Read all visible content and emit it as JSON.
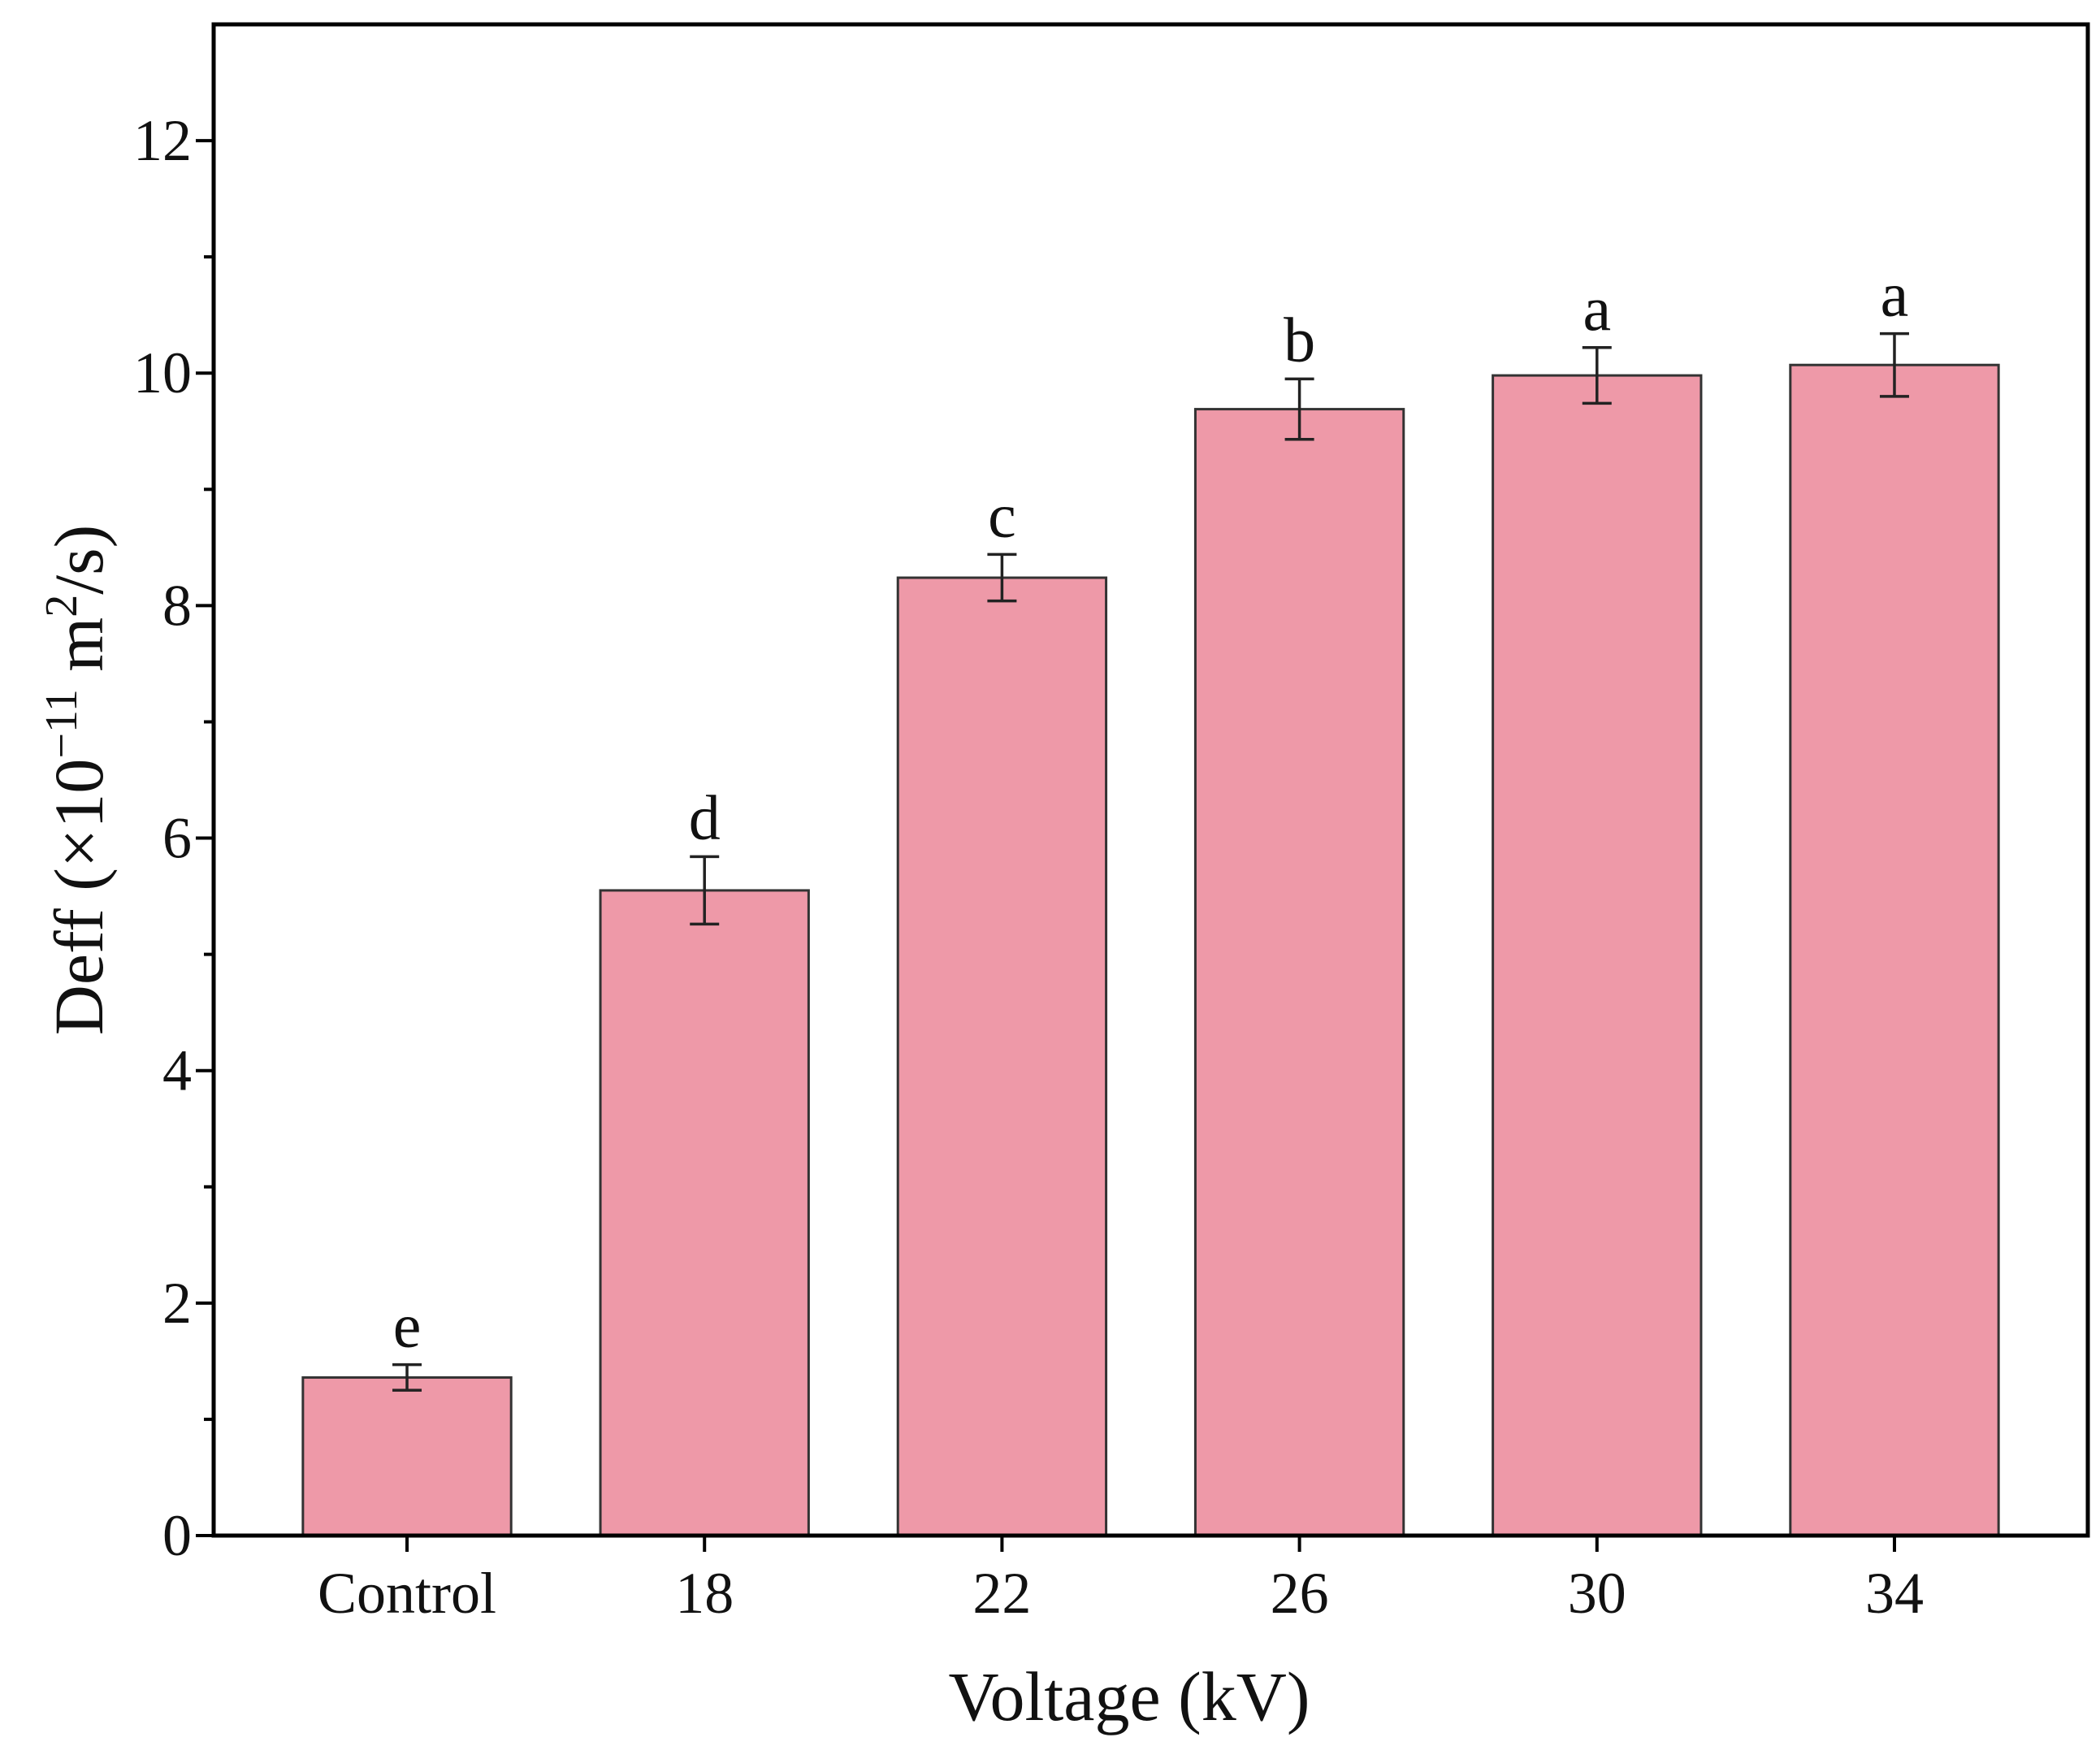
{
  "chart_data": {
    "type": "bar",
    "title": "",
    "xlabel": "Voltage (kV)",
    "ylabel": {
      "prefix": "Deff (×10",
      "exponent": "−11",
      "unit_base": " m",
      "unit_exponent": "2",
      "suffix": "/s)"
    },
    "categories": [
      "Control",
      "18",
      "22",
      "26",
      "30",
      "34"
    ],
    "values": [
      1.36,
      5.55,
      8.24,
      9.69,
      9.98,
      10.07
    ],
    "errors": [
      0.11,
      0.29,
      0.2,
      0.26,
      0.24,
      0.27
    ],
    "significance": [
      "e",
      "d",
      "c",
      "b",
      "a",
      "a"
    ],
    "ylim": [
      0,
      13
    ],
    "yticks": [
      "0",
      "2",
      "4",
      "6",
      "8",
      "10",
      "12"
    ],
    "bar_color": "#ee99a8",
    "edge_color": "#333333",
    "grid": false
  }
}
